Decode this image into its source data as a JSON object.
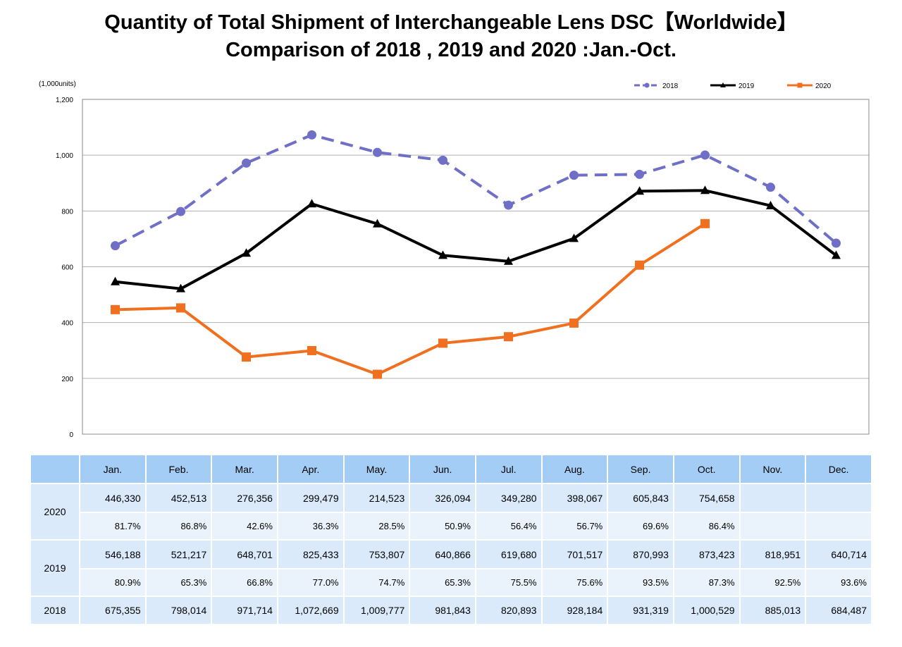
{
  "title_line1": "Quantity of Total Shipment of Interchangeable Lens DSC【Worldwide】",
  "title_line2": "Comparison of 2018 , 2019 and 2020 :Jan.-Oct.",
  "chart_data": {
    "type": "line",
    "title": "Quantity of Total Shipment of Interchangeable Lens DSC【Worldwide】 Comparison of 2018 , 2019 and 2020 :Jan.-Oct.",
    "unit_label": "(1,000units)",
    "categories": [
      "Jan.",
      "Feb.",
      "Mar.",
      "Apr.",
      "May.",
      "Jun.",
      "Jul.",
      "Aug.",
      "Sep.",
      "Oct.",
      "Nov.",
      "Dec."
    ],
    "ylim": [
      0,
      1200
    ],
    "yticks": [
      0,
      200,
      400,
      600,
      800,
      1000,
      1200
    ],
    "ytick_labels": [
      "0",
      "200",
      "400",
      "600",
      "800",
      "1,000",
      "1,200"
    ],
    "grid": true,
    "legend_position": "top-right",
    "series": [
      {
        "name": "2018",
        "color": "#6f6fc8",
        "style": "dashed",
        "marker": "circle",
        "values": [
          675.355,
          798.014,
          971.714,
          1072.669,
          1009.777,
          981.843,
          820.893,
          928.184,
          931.319,
          1000.529,
          885.013,
          684.487
        ]
      },
      {
        "name": "2019",
        "color": "#000000",
        "style": "solid",
        "marker": "triangle",
        "values": [
          546.188,
          521.217,
          648.701,
          825.433,
          753.807,
          640.866,
          619.68,
          701.517,
          870.993,
          873.423,
          818.951,
          640.714
        ]
      },
      {
        "name": "2020",
        "color": "#f07020",
        "style": "solid",
        "marker": "square",
        "values": [
          446.33,
          452.513,
          276.356,
          299.479,
          214.523,
          326.094,
          349.28,
          398.067,
          605.843,
          754.658,
          null,
          null
        ]
      }
    ]
  },
  "table": {
    "months": [
      "Jan.",
      "Feb.",
      "Mar.",
      "Apr.",
      "May.",
      "Jun.",
      "Jul.",
      "Aug.",
      "Sep.",
      "Oct.",
      "Nov.",
      "Dec."
    ],
    "rows": [
      {
        "year": "2020",
        "values": [
          "446,330",
          "452,513",
          "276,356",
          "299,479",
          "214,523",
          "326,094",
          "349,280",
          "398,067",
          "605,843",
          "754,658",
          "",
          ""
        ],
        "ratios": [
          "81.7%",
          "86.8%",
          "42.6%",
          "36.3%",
          "28.5%",
          "50.9%",
          "56.4%",
          "56.7%",
          "69.6%",
          "86.4%",
          "",
          ""
        ]
      },
      {
        "year": "2019",
        "values": [
          "546,188",
          "521,217",
          "648,701",
          "825,433",
          "753,807",
          "640,866",
          "619,680",
          "701,517",
          "870,993",
          "873,423",
          "818,951",
          "640,714"
        ],
        "ratios": [
          "80.9%",
          "65.3%",
          "66.8%",
          "77.0%",
          "74.7%",
          "65.3%",
          "75.5%",
          "75.6%",
          "93.5%",
          "87.3%",
          "92.5%",
          "93.6%"
        ]
      },
      {
        "year": "2018",
        "values": [
          "675,355",
          "798,014",
          "971,714",
          "1,072,669",
          "1,009,777",
          "981,843",
          "820,893",
          "928,184",
          "931,319",
          "1,000,529",
          "885,013",
          "684,487"
        ]
      }
    ]
  }
}
